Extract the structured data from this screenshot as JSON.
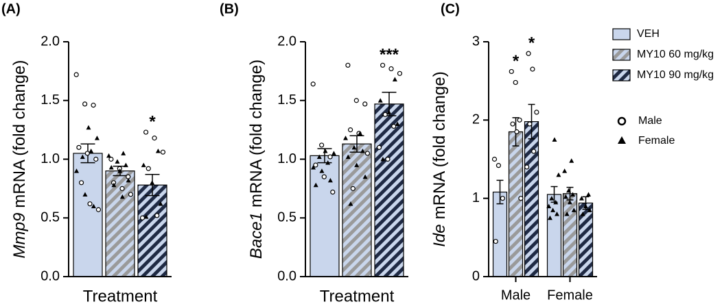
{
  "chart_data": [
    {
      "type": "bar",
      "panel": "(A)",
      "ylabel_gene": "Mmp9",
      "ylabel": "mRNA (fold change)",
      "xlabel": "Treatment",
      "categories": [
        null
      ],
      "ylim": [
        0,
        2
      ],
      "yticks": [
        {
          "value": 0,
          "label": "0.0"
        },
        0.5,
        {
          "value": 1,
          "label": "1.0"
        },
        1.5,
        {
          "value": 2,
          "label": "2.0"
        }
      ],
      "series": [
        {
          "name": "VEH",
          "color": "#c9d6ec",
          "hatch": null,
          "values": [
            1.05
          ],
          "errors": [
            0.08
          ],
          "points": {
            "male": [
              1.72,
              1.47,
              1.46,
              1.1,
              1.05,
              1.0,
              0.8,
              0.62,
              0.57
            ],
            "female": [
              1.27,
              1.18,
              1.02,
              1.07,
              0.9,
              0.7,
              0.6
            ]
          }
        },
        {
          "name": "MY10 60 mg/kg",
          "color": "#c9d6ec",
          "hatch": "#9a9a9a",
          "values": [
            0.9
          ],
          "errors": [
            0.04
          ],
          "points": {
            "male": [
              1.0,
              0.92,
              0.85,
              0.8,
              0.75,
              0.7
            ],
            "female": [
              1.05,
              1.03,
              0.98,
              0.95,
              0.93,
              0.9,
              0.82,
              0.78,
              0.68
            ]
          }
        },
        {
          "name": "MY10 90 mg/kg",
          "color": "#c9d6ec",
          "hatch": "#1f2a44",
          "values": [
            0.78
          ],
          "errors": [
            0.09
          ],
          "annotations": [
            "*"
          ],
          "points": {
            "male": [
              1.23,
              1.18,
              1.06,
              0.92,
              0.52,
              0.5
            ],
            "female": [
              1.07,
              0.95,
              0.8,
              0.62,
              0.51
            ]
          }
        }
      ]
    },
    {
      "type": "bar",
      "panel": "(B)",
      "ylabel_gene": "Bace1",
      "ylabel": "mRNA (fold change)",
      "xlabel": "Treatment",
      "categories": [
        null
      ],
      "ylim": [
        0,
        2
      ],
      "yticks": [
        {
          "value": 0,
          "label": "0.0"
        },
        0.5,
        {
          "value": 1,
          "label": "1.0"
        },
        1.5,
        {
          "value": 2,
          "label": "2.0"
        }
      ],
      "series": [
        {
          "name": "VEH",
          "color": "#c9d6ec",
          "hatch": null,
          "values": [
            1.03
          ],
          "errors": [
            0.06
          ],
          "points": {
            "male": [
              1.64,
              1.12,
              1.02,
              0.95,
              0.85,
              0.72
            ],
            "female": [
              1.07,
              1.05,
              1.02,
              0.97,
              0.93,
              0.9,
              0.82,
              0.78
            ]
          }
        },
        {
          "name": "MY10 60 mg/kg",
          "color": "#c9d6ec",
          "hatch": "#9a9a9a",
          "values": [
            1.13
          ],
          "errors": [
            0.07
          ],
          "points": {
            "male": [
              1.8,
              1.5,
              1.47,
              1.25,
              1.22,
              1.05,
              0.75
            ],
            "female": [
              1.22,
              1.18,
              1.1,
              1.07,
              1.02,
              0.95,
              0.85,
              0.62
            ]
          }
        },
        {
          "name": "MY10 90 mg/kg",
          "color": "#c9d6ec",
          "hatch": "#1f2a44",
          "values": [
            1.47
          ],
          "errors": [
            0.1
          ],
          "annotations": [
            "***"
          ],
          "points": {
            "male": [
              1.8,
              1.77,
              1.73,
              1.38,
              1.28,
              1.1,
              1.0
            ],
            "female": [
              1.68,
              1.5,
              1.4,
              1.3,
              1.0
            ]
          }
        }
      ]
    },
    {
      "type": "bar",
      "panel": "(C)",
      "ylabel_gene": "Ide",
      "ylabel": "mRNA (fold change)",
      "categories": [
        "Male",
        "Female"
      ],
      "ylim": [
        0,
        3
      ],
      "yticks": [
        0,
        1,
        2,
        3
      ],
      "point_legend": [
        "Male",
        "Female"
      ],
      "series": [
        {
          "name": "VEH",
          "color": "#c9d6ec",
          "hatch": null,
          "values": [
            1.08,
            1.05
          ],
          "errors": [
            0.15,
            0.1
          ],
          "points": {
            "male": [
              1.5,
              1.42,
              1.0,
              0.45
            ],
            "female": [
              1.75,
              1.3,
              1.0,
              0.95,
              0.9,
              0.85,
              0.8,
              0.75
            ]
          }
        },
        {
          "name": "MY10 60 mg/kg",
          "color": "#c9d6ec",
          "hatch": "#9a9a9a",
          "values": [
            1.85,
            1.06
          ],
          "errors": [
            0.18,
            0.08
          ],
          "annotations": [
            "*",
            null
          ],
          "points": {
            "male": [
              2.62,
              2.48,
              2.0,
              1.95,
              1.85,
              1.0
            ],
            "female": [
              1.48,
              1.35,
              1.1,
              1.05,
              1.02,
              0.95,
              0.85,
              0.8
            ]
          }
        },
        {
          "name": "MY10 90 mg/kg",
          "color": "#c9d6ec",
          "hatch": "#1f2a44",
          "values": [
            1.98,
            0.94
          ],
          "errors": [
            0.22,
            0.08
          ],
          "annotations": [
            "*",
            null
          ],
          "points": {
            "male": [
              2.85,
              2.65,
              2.1,
              1.95,
              1.6,
              1.4
            ],
            "female": [
              1.05,
              1.0,
              0.9,
              0.85,
              0.8
            ]
          }
        }
      ]
    }
  ]
}
